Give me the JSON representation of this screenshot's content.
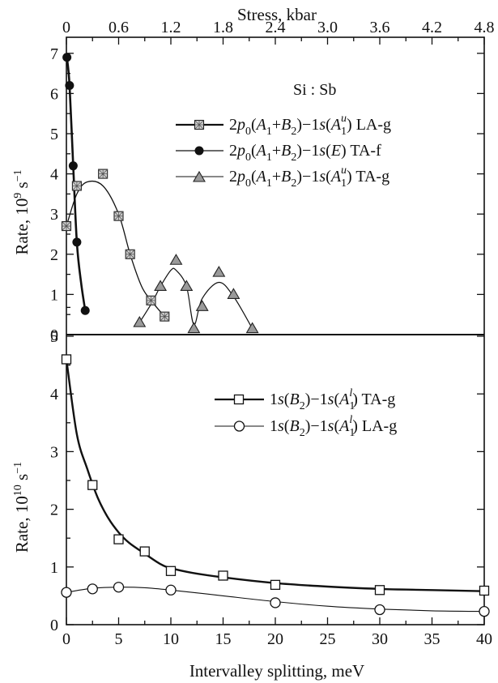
{
  "chart_data": [
    {
      "type": "scatter",
      "title": "Si : Sb",
      "xlabel": "Intervalley splitting, meV",
      "ylabel": "Rate, 10^9 s^-1",
      "ylabel_parts": {
        "base": "Rate, 10",
        "exp1": "9",
        "unit": " s",
        "exp2": "−1"
      },
      "top_xlabel": "Stress, kbar",
      "top_xticks": [
        "0",
        "0.6",
        "1.2",
        "1.8",
        "2.4",
        "3.0",
        "3.6",
        "4.2",
        "4.8"
      ],
      "xlim": [
        0,
        40
      ],
      "ylim": [
        0,
        7
      ],
      "yticks": [
        "0",
        "1",
        "2",
        "3",
        "4",
        "5",
        "6",
        "7"
      ],
      "grid": false,
      "legend_position": "top-right",
      "series": [
        {
          "name": "2p0(A1+B2)−1s(A1u) LA-g",
          "marker": "crossed-square",
          "color": "#111111",
          "x": [
            0,
            1,
            3.5,
            5,
            6.1,
            8.1,
            9.4
          ],
          "y": [
            2.7,
            3.7,
            4.0,
            2.95,
            2.0,
            0.85,
            0.45
          ],
          "curve_x": [
            0,
            1,
            2,
            3.5,
            5,
            6.1,
            7.2,
            8.1,
            9.4
          ],
          "curve_y": [
            2.7,
            3.5,
            3.8,
            3.7,
            3.0,
            2.0,
            1.2,
            0.85,
            0.45
          ]
        },
        {
          "name": "2p0(A1+B2)−1s(E) TA-f",
          "marker": "filled-circle",
          "color": "#111111",
          "x": [
            0.05,
            0.3,
            0.65,
            1.0,
            1.8
          ],
          "y": [
            6.9,
            6.2,
            4.2,
            2.3,
            0.6
          ],
          "curve_x": [
            0.05,
            0.3,
            0.65,
            1.0,
            1.4,
            1.8
          ],
          "curve_y": [
            6.9,
            6.2,
            4.2,
            2.3,
            1.3,
            0.6
          ]
        },
        {
          "name": "2p0(A1+B2)−1s(A1u) TA-g",
          "marker": "shaded-triangle",
          "color": "#111111",
          "x": [
            7.0,
            9.0,
            10.5,
            11.5,
            12.2,
            13.0,
            14.6,
            16.0,
            17.8
          ],
          "y": [
            0.3,
            1.2,
            1.85,
            1.2,
            0.15,
            0.7,
            1.55,
            1.0,
            0.15
          ],
          "curve_x": [
            7.0,
            8.2,
            9.0,
            10.0,
            10.5,
            11.5,
            12.2,
            13.0,
            14.6,
            16.0,
            17.8
          ],
          "curve_y": [
            0.3,
            0.8,
            1.2,
            1.6,
            1.6,
            1.2,
            0.25,
            0.9,
            1.3,
            0.95,
            0.15
          ]
        }
      ],
      "legend_rows": [
        {
          "base": "2",
          "italic": "p",
          "rest": [
            [
              "",
              "0"
            ],
            [
              "(",
              ""
            ],
            [
              "A",
              "1"
            ],
            [
              "+",
              ""
            ],
            [
              "B",
              "2"
            ],
            [
              ")−1",
              ""
            ]
          ],
          "end": "LA-g"
        }
      ]
    },
    {
      "type": "line",
      "xlabel": "Intervalley splitting, meV",
      "ylabel": "Rate, 10^10 s^-1",
      "ylabel_parts": {
        "base": "Rate, 10",
        "exp1": "10",
        "unit": " s",
        "exp2": "−1"
      },
      "xlim": [
        0,
        40
      ],
      "ylim": [
        0,
        5.3
      ],
      "xticks": [
        "0",
        "5",
        "10",
        "15",
        "20",
        "25",
        "30",
        "35",
        "40"
      ],
      "yticks": [
        "0",
        "1",
        "2",
        "3",
        "4",
        "5"
      ],
      "grid": false,
      "legend_position": "top-right",
      "series": [
        {
          "name": "1s(B2)−1s(A1l) TA-g",
          "marker": "open-square",
          "color": "#111111",
          "x": [
            0,
            2.5,
            5,
            7.5,
            10,
            15,
            20,
            30,
            40
          ],
          "y": [
            4.6,
            2.42,
            1.48,
            1.27,
            0.93,
            0.85,
            0.69,
            0.6,
            0.59
          ],
          "curve_x": [
            0,
            1,
            2,
            3,
            4,
            5,
            6,
            7.5,
            9,
            10,
            12,
            15,
            20,
            25,
            30,
            35,
            40
          ],
          "curve_y": [
            4.6,
            3.3,
            2.7,
            2.2,
            1.85,
            1.6,
            1.42,
            1.23,
            1.05,
            0.98,
            0.9,
            0.82,
            0.72,
            0.66,
            0.62,
            0.6,
            0.58
          ]
        },
        {
          "name": "1s(B2)−1s(A1l) LA-g",
          "marker": "open-circle",
          "color": "#111111",
          "x": [
            0,
            2.5,
            5,
            10,
            20,
            30,
            40
          ],
          "y": [
            0.56,
            0.62,
            0.65,
            0.6,
            0.38,
            0.26,
            0.23
          ],
          "curve_x": [
            0,
            2.5,
            5,
            7.5,
            10,
            15,
            20,
            25,
            30,
            35,
            40
          ],
          "curve_y": [
            0.56,
            0.63,
            0.65,
            0.64,
            0.6,
            0.5,
            0.4,
            0.32,
            0.27,
            0.24,
            0.23
          ]
        }
      ]
    }
  ],
  "labels": {
    "top_title": "Stress, kbar",
    "bottom_title": "Intervalley splitting, meV",
    "legend_title": "Si : Sb",
    "upper_ylabel": "Rate, 10",
    "upper_ylabel_exp": "9",
    "lower_ylabel": "Rate, 10",
    "lower_ylabel_exp": "10",
    "ylabel_unit": " s",
    "ylabel_unit_exp": "−1",
    "leg_la_g_end": "LA-g",
    "leg_ta_f_end": "TA-f",
    "leg_ta_g_end": "TA-g",
    "leg_b2_ta_end": "TA-g",
    "leg_b2_la_end": "LA-g"
  }
}
